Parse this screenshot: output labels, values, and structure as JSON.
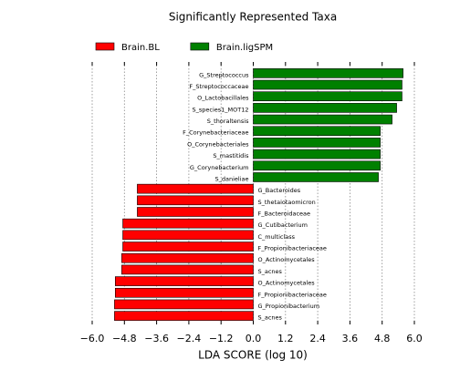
{
  "chart_data": {
    "type": "bar",
    "orientation": "horizontal",
    "title": "Significantly Represented Taxa",
    "x_label": "LDA SCORE (log 10)",
    "categories": [
      "G_Streptococcus",
      "F_Streptococcaceae",
      "O_Lactobacillales",
      "S_species1_MOT12",
      "S_thoraltensis",
      "F_Corynebacteriaceae",
      "O_Corynebacteriales",
      "S_mastitidis",
      "G_Corynebacterium",
      "S_danieliae",
      "G_Bacteroides",
      "S_thetaiotaomicron",
      "F_Bacteroidaceae",
      "G_Cutibacterium",
      "C_multiclass",
      "F_Propionibacteriaceae",
      "O_Actinomycetales",
      "S_acnes",
      "O_Actinomycetales",
      "F_Propionibacteriaceae",
      "G_Propionibacterium",
      "S_acnes"
    ],
    "series": [
      {
        "name": "Brain.BL",
        "color": "#ff0000",
        "values": [
          null,
          null,
          null,
          null,
          null,
          null,
          null,
          null,
          null,
          null,
          -4.32,
          -4.32,
          -4.32,
          -4.86,
          -4.86,
          -4.86,
          -4.9,
          -4.9,
          -5.14,
          -5.14,
          -5.17,
          -5.17
        ]
      },
      {
        "name": "Brain.ligSPM",
        "color": "#008000",
        "values": [
          5.58,
          5.54,
          5.54,
          5.34,
          5.17,
          4.73,
          4.73,
          4.73,
          4.73,
          4.66,
          null,
          null,
          null,
          null,
          null,
          null,
          null,
          null,
          null,
          null,
          null,
          null
        ]
      }
    ],
    "xlim": [
      -6.0,
      6.0
    ],
    "xticks": [
      {
        "value": -6.0,
        "label": "−6.0"
      },
      {
        "value": -4.8,
        "label": "−4.8"
      },
      {
        "value": -3.6,
        "label": "−3.6"
      },
      {
        "value": -2.4,
        "label": "−2.4"
      },
      {
        "value": -1.2,
        "label": "−1.2"
      },
      {
        "value": 0.0,
        "label": "0.0"
      },
      {
        "value": 1.2,
        "label": "1.2"
      },
      {
        "value": 2.4,
        "label": "2.4"
      },
      {
        "value": 3.6,
        "label": "3.6"
      },
      {
        "value": 4.8,
        "label": "4.8"
      },
      {
        "value": 6.0,
        "label": "6.0"
      }
    ],
    "grid": true,
    "legend": "top"
  }
}
